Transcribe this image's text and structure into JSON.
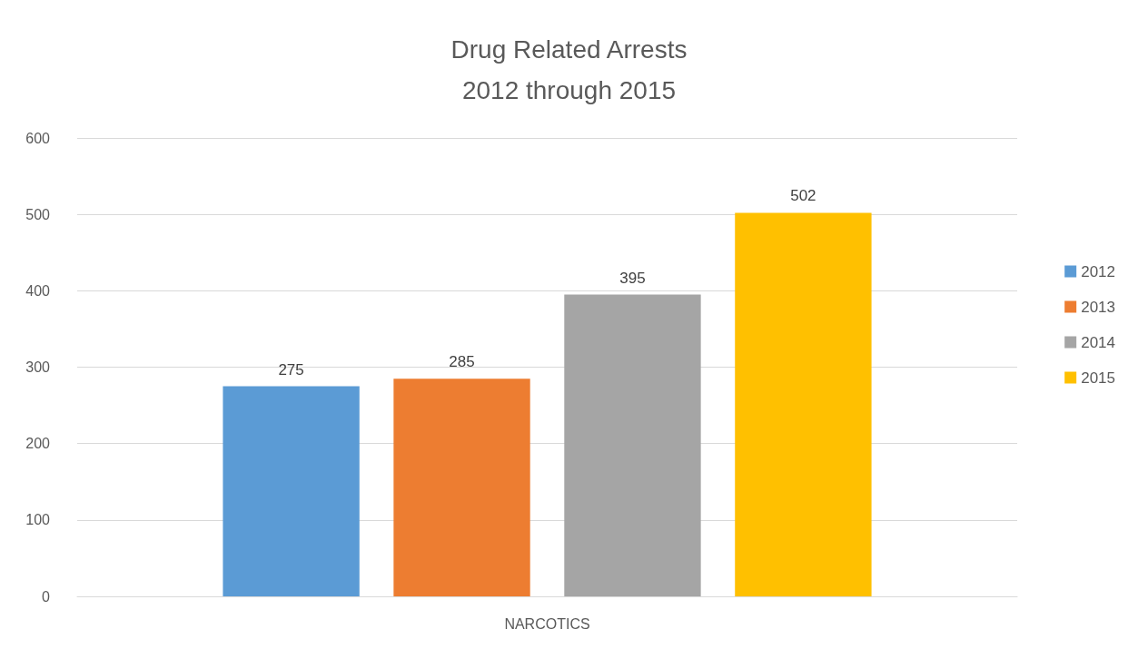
{
  "chart_data": {
    "type": "bar",
    "title": "Drug Related Arrests",
    "subtitle": "2012 through 2015",
    "categories": [
      "NARCOTICS"
    ],
    "series": [
      {
        "name": "2012",
        "color": "#5b9bd5",
        "values": [
          275
        ]
      },
      {
        "name": "2013",
        "color": "#ed7d31",
        "values": [
          285
        ]
      },
      {
        "name": "2014",
        "color": "#a5a5a5",
        "values": [
          395
        ]
      },
      {
        "name": "2015",
        "color": "#ffc000",
        "values": [
          502
        ]
      }
    ],
    "ylim": [
      0,
      600
    ],
    "yticks": [
      0,
      100,
      200,
      300,
      400,
      500,
      600
    ],
    "grid": "y",
    "legend": "right",
    "data_labels": true
  }
}
